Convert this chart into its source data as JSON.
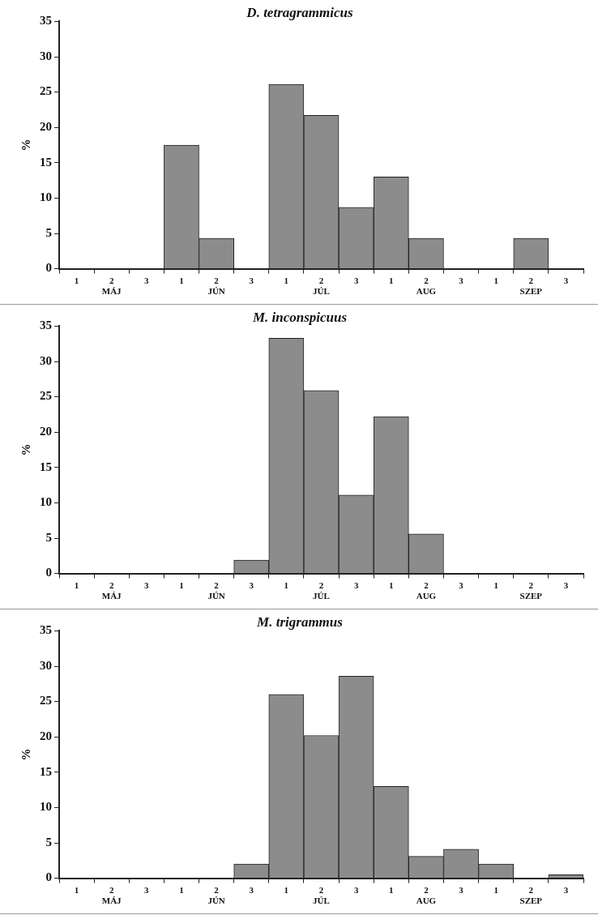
{
  "chart_data": [
    {
      "type": "bar",
      "title": "D. tetragrammicus",
      "ylabel": "%",
      "categories": [
        "1",
        "2\nMÁJ",
        "3",
        "1",
        "2\nJÚN",
        "3",
        "1",
        "2\nJÚL",
        "3",
        "1",
        "2\nAUG",
        "3",
        "1",
        "2\nSZEP",
        "3"
      ],
      "values": [
        0,
        0,
        0,
        17.5,
        4.3,
        0,
        26.1,
        21.7,
        8.7,
        13,
        4.3,
        0,
        0,
        4.3,
        0
      ],
      "color": "#8c8c8c",
      "ylim": [
        0,
        35
      ],
      "yticks": [
        0,
        5,
        10,
        15,
        20,
        25,
        30,
        35
      ],
      "legend": false
    },
    {
      "type": "bar",
      "title": "M. inconspicuus",
      "ylabel": "%",
      "categories": [
        "1",
        "2\nMÁJ",
        "3",
        "1",
        "2\nJÚN",
        "3",
        "1",
        "2\nJÚL",
        "3",
        "1",
        "2\nAUG",
        "3",
        "1",
        "2\nSZEP",
        "3"
      ],
      "values": [
        0,
        0,
        0,
        0,
        0,
        1.9,
        33.3,
        25.9,
        11.1,
        22.2,
        5.6,
        0,
        0,
        0,
        0
      ],
      "color": "#8c8c8c",
      "ylim": [
        0,
        35
      ],
      "yticks": [
        0,
        5,
        10,
        15,
        20,
        25,
        30,
        35
      ],
      "legend": false
    },
    {
      "type": "bar",
      "title": "M. trigrammus",
      "ylabel": "%",
      "categories": [
        "1",
        "2\nMÁJ",
        "3",
        "1",
        "2\nJÚN",
        "3",
        "1",
        "2\nJÚL",
        "3",
        "1",
        "2\nAUG",
        "3",
        "1",
        "2\nSZEP",
        "3"
      ],
      "values": [
        0,
        0,
        0,
        0,
        0,
        2,
        26,
        20.2,
        28.6,
        13,
        3.1,
        4.1,
        2,
        0,
        0.5
      ],
      "color": "#8c8c8c",
      "ylim": [
        0,
        35
      ],
      "yticks": [
        0,
        5,
        10,
        15,
        20,
        25,
        30,
        35
      ],
      "legend": false
    }
  ]
}
